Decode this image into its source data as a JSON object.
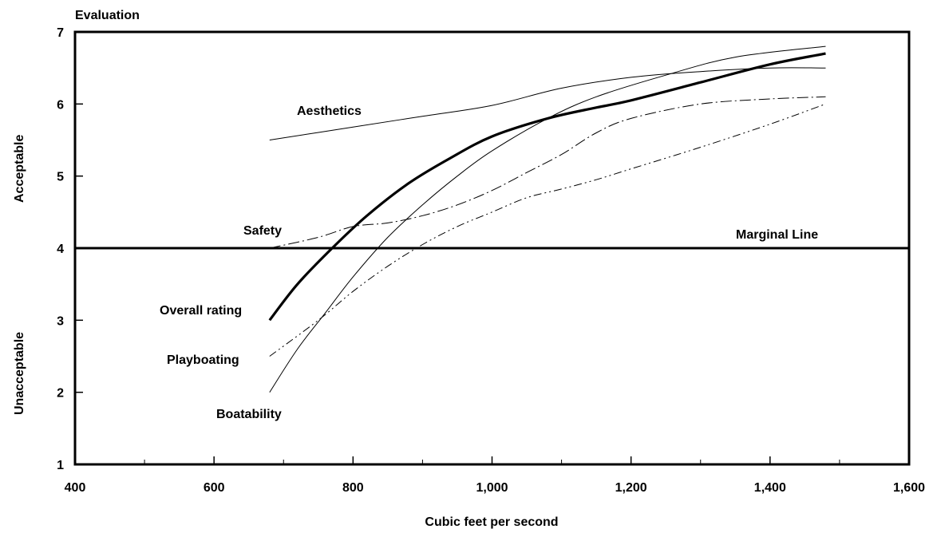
{
  "chart_data": {
    "type": "line",
    "title": "Evaluation",
    "xlabel": "Cubic feet per second",
    "xlim": [
      400,
      1600
    ],
    "ylim": [
      1,
      7
    ],
    "x_ticks": [
      400,
      600,
      800,
      1000,
      1200,
      1400,
      1600
    ],
    "x_tick_labels": [
      "400",
      "600",
      "800",
      "1,000",
      "1,200",
      "1,400",
      "1,600"
    ],
    "y_ticks": [
      1,
      2,
      3,
      4,
      5,
      6,
      7
    ],
    "y_tick_labels": [
      "1",
      "2",
      "3",
      "4",
      "5",
      "6",
      "7"
    ],
    "y_region_labels": {
      "upper": "Acceptable",
      "lower": "Unacceptable"
    },
    "grid": false,
    "reference_line": {
      "label": "Marginal Line",
      "y": 4
    },
    "series": [
      {
        "name": "Aesthetics",
        "style": "thin-solid",
        "x": [
          680,
          800,
          900,
          1000,
          1100,
          1200,
          1300,
          1400,
          1480
        ],
        "y": [
          5.5,
          5.68,
          5.83,
          5.98,
          6.22,
          6.37,
          6.45,
          6.5,
          6.5
        ]
      },
      {
        "name": "Safety",
        "style": "dash-dot",
        "x": [
          680,
          750,
          800,
          850,
          900,
          950,
          1000,
          1050,
          1100,
          1150,
          1200,
          1300,
          1400,
          1480
        ],
        "y": [
          4.0,
          4.15,
          4.3,
          4.35,
          4.45,
          4.6,
          4.8,
          5.05,
          5.3,
          5.6,
          5.8,
          6.0,
          6.07,
          6.1
        ]
      },
      {
        "name": "Overall rating",
        "style": "thick-solid",
        "x": [
          680,
          720,
          770,
          820,
          880,
          940,
          1000,
          1080,
          1150,
          1200,
          1300,
          1400,
          1480
        ],
        "y": [
          3.0,
          3.5,
          4.0,
          4.45,
          4.9,
          5.25,
          5.55,
          5.8,
          5.95,
          6.05,
          6.3,
          6.55,
          6.7
        ]
      },
      {
        "name": "Playboating",
        "style": "dash-dot-dot",
        "x": [
          680,
          750,
          800,
          850,
          900,
          950,
          1000,
          1050,
          1100,
          1150,
          1200,
          1300,
          1400,
          1480
        ],
        "y": [
          2.5,
          3.0,
          3.4,
          3.75,
          4.05,
          4.3,
          4.5,
          4.7,
          4.82,
          4.95,
          5.1,
          5.4,
          5.72,
          6.0
        ]
      },
      {
        "name": "Boatability",
        "style": "thin-solid",
        "x": [
          680,
          720,
          760,
          800,
          850,
          900,
          950,
          1000,
          1080,
          1150,
          1250,
          1350,
          1480
        ],
        "y": [
          2.0,
          2.6,
          3.1,
          3.6,
          4.15,
          4.6,
          5.0,
          5.35,
          5.8,
          6.1,
          6.4,
          6.65,
          6.8
        ]
      }
    ]
  }
}
